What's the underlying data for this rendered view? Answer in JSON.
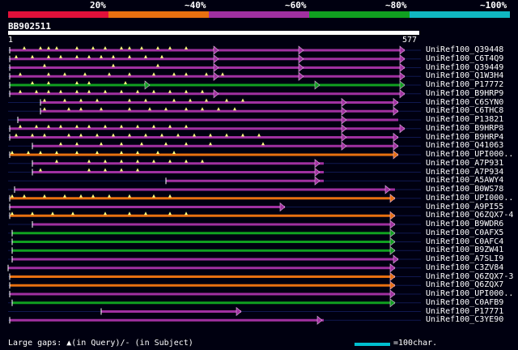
{
  "legend": {
    "labels": [
      "20%",
      "~40%",
      "~60%",
      "~80%",
      "~100%"
    ],
    "colors": [
      "#e0103a",
      "#e87010",
      "#a030a0",
      "#10a020",
      "#10b8c0"
    ]
  },
  "query": {
    "id": "BB902511",
    "start": "1",
    "end": "577"
  },
  "hits": [
    {
      "label": "UniRef100_Q39448",
      "color": "#a030a0",
      "start": 12,
      "end": 500,
      "arrows": [
        270,
        375,
        500
      ],
      "gaps": [
        30,
        50,
        60,
        70,
        95,
        115,
        130,
        150,
        160,
        175,
        195,
        210,
        230,
        265
      ]
    },
    {
      "label": "UniRef100_C6T4Q9",
      "color": "#a030a0",
      "start": 12,
      "end": 500,
      "arrows": [
        270,
        375,
        500
      ],
      "gaps": [
        20,
        40,
        60,
        75,
        95,
        110,
        125,
        140,
        160,
        180,
        200
      ]
    },
    {
      "label": "UniRef100_Q39449",
      "color": "#a030a0",
      "start": 12,
      "end": 500,
      "arrows": [
        270,
        375,
        500
      ],
      "gaps": [
        55,
        140,
        195
      ]
    },
    {
      "label": "UniRef100_Q1W3H4",
      "color": "#a030a0",
      "start": 12,
      "end": 500,
      "arrows": [
        270,
        375,
        500
      ],
      "gaps": [
        25,
        60,
        80,
        105,
        135,
        160,
        190,
        215,
        230,
        255,
        275
      ]
    },
    {
      "label": "UniRef100_P17772",
      "color": "#10a020",
      "start": 12,
      "end": 500,
      "arrows": [
        185,
        395,
        500
      ],
      "gaps": [
        40,
        60,
        95,
        110,
        155,
        180
      ]
    },
    {
      "label": "UniRef100_B9HRP9",
      "color": "#a030a0",
      "start": 12,
      "end": 500,
      "arrows": [
        270,
        500
      ],
      "gaps": [
        25,
        45,
        60,
        75,
        95,
        110,
        130,
        150,
        170,
        190,
        210,
        230,
        250
      ]
    },
    {
      "label": "UniRef100_C6SYN0",
      "color": "#a030a0",
      "start": 50,
      "end": 492,
      "arrows": [
        428,
        492
      ],
      "gaps": [
        55,
        80,
        100,
        120,
        160,
        180,
        215,
        235,
        255,
        280,
        300
      ]
    },
    {
      "label": "UniRef100_C6THC8",
      "color": "#a030a0",
      "start": 50,
      "end": 492,
      "arrows": [
        428,
        492
      ],
      "gaps": [
        55,
        85,
        100,
        125,
        160,
        185,
        205,
        230,
        250,
        270,
        290
      ]
    },
    {
      "label": "UniRef100_P13821",
      "color": "#a030a0",
      "start": 22,
      "end": 492,
      "arrows": [
        428
      ],
      "gaps": []
    },
    {
      "label": "UniRef100_B9HRP8",
      "color": "#a030a0",
      "start": 12,
      "end": 500,
      "arrows": [
        428,
        500
      ],
      "gaps": [
        25,
        45,
        60,
        75,
        95,
        110,
        130,
        150,
        170,
        190,
        210,
        230
      ]
    },
    {
      "label": "UniRef100_B9HRP4",
      "color": "#a030a0",
      "start": 12,
      "end": 492,
      "arrows": [
        428,
        492
      ],
      "gaps": [
        20,
        40,
        55,
        85,
        100,
        120,
        140,
        160,
        180,
        200,
        220,
        240,
        260,
        280,
        300,
        320
      ]
    },
    {
      "label": "UniRef100_Q41063",
      "color": "#a030a0",
      "start": 40,
      "end": 492,
      "arrows": [
        428,
        492
      ],
      "gaps": [
        75,
        95,
        125,
        150,
        175,
        205,
        230,
        260,
        325
      ]
    },
    {
      "label": "UniRef100_UPI000..",
      "color": "#e87010",
      "start": 12,
      "end": 492,
      "arrows": [
        492
      ],
      "gaps": [
        15,
        35,
        50,
        70,
        95,
        120,
        150,
        170,
        195,
        215
      ]
    },
    {
      "label": "UniRef100_A7P931",
      "color": "#a030a0",
      "start": 40,
      "end": 400,
      "arrows": [
        395
      ],
      "gaps": [
        70,
        110,
        130,
        150,
        170,
        190,
        210,
        230,
        250
      ]
    },
    {
      "label": "UniRef100_A7P934",
      "color": "#a030a0",
      "start": 40,
      "end": 400,
      "arrows": [
        395
      ],
      "gaps": [
        50,
        110,
        130,
        150,
        170
      ]
    },
    {
      "label": "UniRef100_A5AWY4",
      "color": "#a030a0",
      "start": 205,
      "end": 400,
      "arrows": [
        395
      ],
      "gaps": []
    },
    {
      "label": "UniRef100_B0WS78",
      "color": "#a030a0",
      "start": 18,
      "end": 488,
      "arrows": [
        482
      ],
      "gaps": []
    },
    {
      "label": "UniRef100_UPI000..",
      "color": "#e87010",
      "start": 12,
      "end": 488,
      "arrows": [
        488
      ],
      "gaps": [
        15,
        30,
        55,
        80,
        100,
        115,
        135,
        160,
        190,
        210
      ]
    },
    {
      "label": "UniRef100_A9PI55",
      "color": "#a030a0",
      "start": 12,
      "end": 352,
      "arrows": [
        352
      ],
      "gaps": []
    },
    {
      "label": "UniRef100_Q6ZQX7-4",
      "color": "#e87010",
      "start": 12,
      "end": 488,
      "arrows": [
        488
      ],
      "gaps": [
        15,
        40,
        65,
        90,
        130,
        160,
        180,
        210,
        230
      ]
    },
    {
      "label": "UniRef100_B9WDR6",
      "color": "#a030a0",
      "start": 40,
      "end": 488,
      "arrows": [
        488
      ],
      "gaps": []
    },
    {
      "label": "UniRef100_C0AFX5",
      "color": "#10a020",
      "start": 15,
      "end": 488,
      "arrows": [
        488
      ],
      "gaps": []
    },
    {
      "label": "UniRef100_C0AFC4",
      "color": "#10a020",
      "start": 15,
      "end": 488,
      "arrows": [
        488
      ],
      "gaps": []
    },
    {
      "label": "UniRef100_B9ZW41",
      "color": "#10a020",
      "start": 15,
      "end": 488,
      "arrows": [
        488
      ],
      "gaps": []
    },
    {
      "label": "UniRef100_A7SLI9",
      "color": "#a030a0",
      "start": 15,
      "end": 492,
      "arrows": [
        492
      ],
      "gaps": []
    },
    {
      "label": "UniRef100_C3ZV84",
      "color": "#a030a0",
      "start": 10,
      "end": 488,
      "arrows": [
        488
      ],
      "gaps": []
    },
    {
      "label": "UniRef100_Q6ZQX7-3",
      "color": "#e87010",
      "start": 12,
      "end": 488,
      "arrows": [
        488
      ],
      "gaps": []
    },
    {
      "label": "UniRef100_Q6ZQX7",
      "color": "#e87010",
      "start": 12,
      "end": 488,
      "arrows": [
        488
      ],
      "gaps": []
    },
    {
      "label": "UniRef100_UPI000..",
      "color": "#a030a0",
      "start": 12,
      "end": 488,
      "arrows": [
        488
      ],
      "gaps": []
    },
    {
      "label": "UniRef100_C0AFB9",
      "color": "#10a020",
      "start": 15,
      "end": 488,
      "arrows": [
        488
      ],
      "gaps": []
    },
    {
      "label": "UniRef100_P17771",
      "color": "#a030a0",
      "start": 125,
      "end": 298,
      "arrows": [
        298
      ],
      "gaps": []
    },
    {
      "label": "UniRef100_C3YE90",
      "color": "#a030a0",
      "start": 12,
      "end": 400,
      "arrows": [
        398
      ],
      "gaps": []
    }
  ],
  "footer": {
    "gaps_text": "Large gaps: ▲(in Query)/- (in Subject)",
    "scale_text": "=100char.",
    "scale_color": "#00c0d0"
  }
}
